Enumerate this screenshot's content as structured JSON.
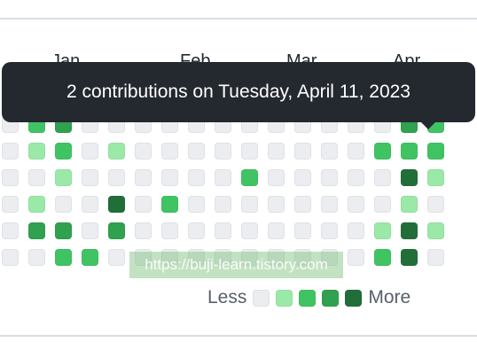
{
  "months": [
    "Jan",
    "Feb",
    "Mar",
    "Apr"
  ],
  "tooltip": {
    "text": "2 contributions on Tuesday, April 11, 2023"
  },
  "watermark": "https://buji-learn.tistory.com",
  "legend": {
    "less_label": "Less",
    "more_label": "More",
    "levels": [
      0,
      1,
      2,
      3,
      4
    ]
  },
  "colors": {
    "level0": "#ebedf0",
    "level1": "#9be9a8",
    "level2": "#40c463",
    "level3": "#30a14e",
    "level4": "#216e39"
  },
  "contribution_levels": [
    [
      0,
      2,
      3,
      0,
      0,
      0,
      0,
      0,
      0,
      0,
      0,
      0,
      0,
      0,
      0,
      3,
      2
    ],
    [
      0,
      1,
      2,
      0,
      1,
      0,
      0,
      0,
      0,
      0,
      0,
      0,
      0,
      0,
      2,
      2,
      2
    ],
    [
      0,
      0,
      1,
      0,
      0,
      0,
      0,
      0,
      0,
      2,
      0,
      0,
      0,
      0,
      0,
      4,
      1
    ],
    [
      0,
      1,
      0,
      0,
      4,
      0,
      2,
      0,
      0,
      0,
      0,
      0,
      0,
      0,
      0,
      1,
      0
    ],
    [
      0,
      3,
      3,
      0,
      3,
      0,
      0,
      0,
      0,
      0,
      0,
      0,
      0,
      0,
      1,
      4,
      1
    ],
    [
      0,
      0,
      2,
      2,
      0,
      0,
      0,
      0,
      0,
      0,
      0,
      0,
      0,
      0,
      2,
      4,
      0
    ]
  ]
}
